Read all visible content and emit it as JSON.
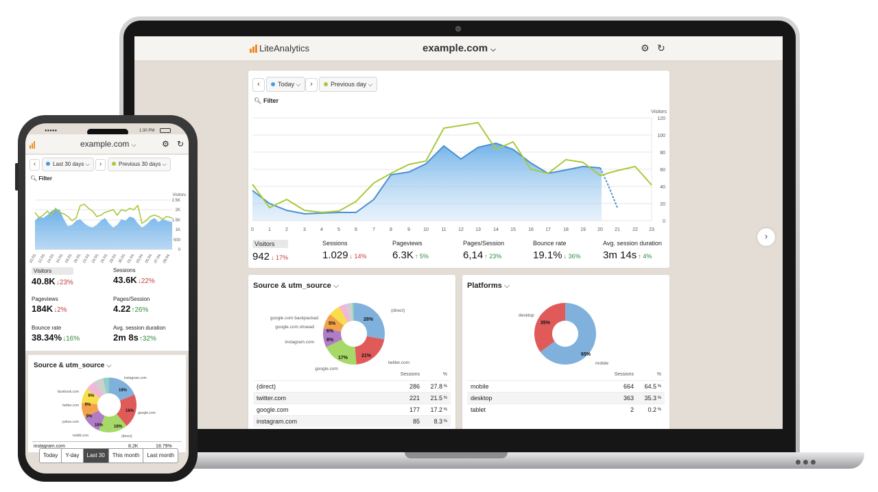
{
  "laptop": {
    "app_name": "LiteAnalytics",
    "site": "example.com",
    "period": {
      "current": "Today",
      "previous": "Previous day",
      "current_color": "#4a9ce0",
      "previous_color": "#a8c93a"
    },
    "filter_label": "Filter",
    "chart": {
      "y_axis_label": "Visitors",
      "y_ticks": [
        "0",
        "20",
        "40",
        "60",
        "80",
        "100",
        "120"
      ],
      "x_ticks": [
        "0",
        "1",
        "2",
        "3",
        "4",
        "5",
        "6",
        "7",
        "8",
        "9",
        "10",
        "11",
        "12",
        "13",
        "14",
        "15",
        "16",
        "17",
        "18",
        "19",
        "20",
        "21",
        "22",
        "23"
      ]
    },
    "metrics": [
      {
        "label": "Visitors",
        "value": "942",
        "change": "↓ 17%",
        "dir": "down"
      },
      {
        "label": "Sessions",
        "value": "1.029",
        "change": "↓ 14%",
        "dir": "down"
      },
      {
        "label": "Pageviews",
        "value": "6.3K",
        "change": "↑ 5%",
        "dir": "up"
      },
      {
        "label": "Pages/Session",
        "value": "6,14",
        "change": "↑ 23%",
        "dir": "up"
      },
      {
        "label": "Bounce rate",
        "value": "19.1%",
        "change": "↓ 36%",
        "dir": "down"
      },
      {
        "label": "Avg. session duration",
        "value": "3m 14s",
        "change": "↑ 4%",
        "dir": "up"
      }
    ],
    "source": {
      "title": "Source & utm_source",
      "pie_labels": [
        "(direct)",
        "twitter.com",
        "google.com",
        "instagram.com",
        "google.com shoead",
        "google.com backpackad"
      ],
      "pie_pct": [
        "28%",
        "21%",
        "17%",
        "8%",
        "6%",
        "5%"
      ],
      "col_sessions": "Sessions",
      "col_pct": "%",
      "rows": [
        {
          "name": "(direct)",
          "sessions": "286",
          "pct": "27.8",
          "unit": "%"
        },
        {
          "name": "twitter.com",
          "sessions": "221",
          "pct": "21.5",
          "unit": "%"
        },
        {
          "name": "google.com",
          "sessions": "177",
          "pct": "17.2",
          "unit": "%"
        },
        {
          "name": "instagram.com",
          "sessions": "85",
          "pct": "8.3",
          "unit": "%"
        }
      ]
    },
    "platforms": {
      "title": "Platforms",
      "pie_labels": [
        "desktop",
        "mobile"
      ],
      "pie_pct": [
        "35%",
        "65%"
      ],
      "col_sessions": "Sessions",
      "col_pct": "%",
      "rows": [
        {
          "name": "mobile",
          "sessions": "664",
          "pct": "64.5",
          "unit": "%"
        },
        {
          "name": "desktop",
          "sessions": "363",
          "pct": "35.3",
          "unit": "%"
        },
        {
          "name": "tablet",
          "sessions": "2",
          "pct": "0.2",
          "unit": "%"
        }
      ]
    }
  },
  "phone": {
    "time": "1:30 PM",
    "site": "example.com",
    "period": {
      "current": "Last 30 days",
      "previous": "Previous 30 days"
    },
    "filter_label": "Filter",
    "chart": {
      "y_axis_label": "Visitors",
      "y_ticks": [
        "0",
        "500",
        "1K",
        "1.5K",
        "2K",
        "2.5K"
      ],
      "x_ticks": [
        "10.03.",
        "12.03.",
        "14.03.",
        "16.03.",
        "18.03.",
        "20.03.",
        "22.03.",
        "24.03.",
        "26.03.",
        "28.03.",
        "30.03.",
        "01.04.",
        "03.04.",
        "05.04.",
        "07.04.",
        "09.04."
      ]
    },
    "metrics": [
      {
        "label": "Visitors",
        "value": "40.8K",
        "change": "↓23%",
        "dir": "down"
      },
      {
        "label": "Sessions",
        "value": "43.6K",
        "change": "↓22%",
        "dir": "down"
      },
      {
        "label": "Pageviews",
        "value": "184K",
        "change": "↓2%",
        "dir": "down"
      },
      {
        "label": "Pages/Session",
        "value": "4.22",
        "change": "↑26%",
        "dir": "up"
      },
      {
        "label": "Bounce rate",
        "value": "38.34%",
        "change": "↓16%",
        "dir": "up"
      },
      {
        "label": "Avg. session duration",
        "value": "2m 8s",
        "change": "↑32%",
        "dir": "up"
      }
    ],
    "source": {
      "title": "Source & utm_source",
      "pie_labels": [
        "instagram.com",
        "google.com",
        "(direct)",
        "reddit.com",
        "yahoo.com",
        "twitter.com",
        "facebook.com"
      ],
      "pie_pct": [
        "19%",
        "16%",
        "16%",
        "10%",
        "9%",
        "9%",
        "6%"
      ],
      "first_row": {
        "name": "instagram.com",
        "sessions": "8.2K",
        "pct": "18.79%"
      }
    },
    "ranges": [
      "Today",
      "Y-day",
      "Last 30",
      "This month",
      "Last month"
    ],
    "selected_range": "Last 30"
  }
}
